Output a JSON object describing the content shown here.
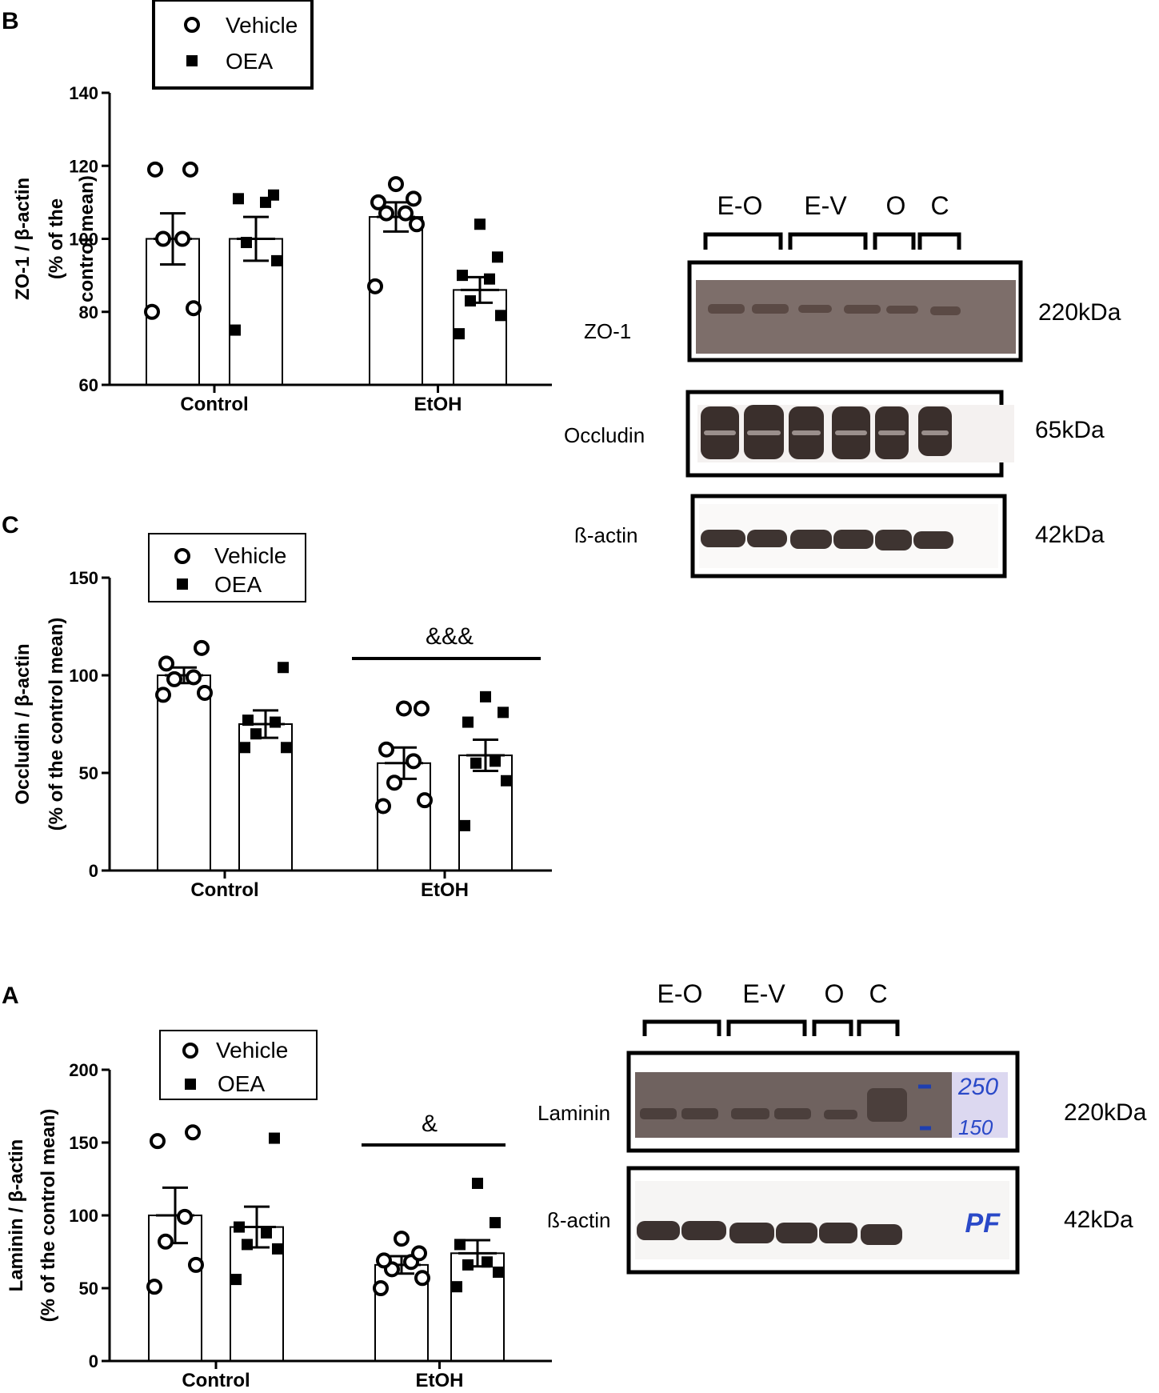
{
  "panels": {
    "B": "B",
    "C": "C",
    "A": "A"
  },
  "legend": {
    "vehicle": "Vehicle",
    "oea": "OEA"
  },
  "chart_data": [
    {
      "id": "B",
      "type": "bar",
      "ylabel_lines": [
        "ZO-1 / β-actin",
        "(% of the",
        "control mean)"
      ],
      "categories": [
        "Control",
        "EtOH"
      ],
      "ylim": [
        60,
        140
      ],
      "yticks": [
        60,
        80,
        100,
        120,
        140
      ],
      "series": [
        {
          "name": "Vehicle",
          "values": [
            100,
            106
          ],
          "sem": [
            7,
            4
          ],
          "points": [
            [
              80,
              81,
              100,
              100,
              119,
              119
            ],
            [
              87,
              104,
              107,
              107,
              110,
              111,
              115
            ]
          ]
        },
        {
          "name": "OEA",
          "values": [
            100,
            86
          ],
          "sem": [
            6,
            3.5
          ],
          "points": [
            [
              75,
              94,
              99,
              110,
              111,
              112
            ],
            [
              74,
              79,
              83,
              89,
              90,
              95,
              104
            ]
          ]
        }
      ],
      "annotation": ""
    },
    {
      "id": "C",
      "type": "bar",
      "ylabel_lines": [
        "Occludin / β-actin",
        "(% of the control mean)"
      ],
      "categories": [
        "Control",
        "EtOH"
      ],
      "ylim": [
        0,
        150
      ],
      "yticks": [
        0,
        50,
        100,
        150
      ],
      "series": [
        {
          "name": "Vehicle",
          "values": [
            100,
            55
          ],
          "sem": [
            4,
            8
          ],
          "points": [
            [
              90,
              91,
              98,
              99,
              106,
              114
            ],
            [
              33,
              36,
              45,
              56,
              62,
              83,
              83
            ]
          ]
        },
        {
          "name": "OEA",
          "values": [
            75,
            59
          ],
          "sem": [
            7,
            8
          ],
          "points": [
            [
              63,
              63,
              70,
              76,
              77,
              104
            ],
            [
              23,
              46,
              55,
              56,
              76,
              81,
              89
            ]
          ]
        }
      ],
      "annotation": "&&&"
    },
    {
      "id": "A",
      "type": "bar",
      "ylabel_lines": [
        "Laminin / β-actin",
        "(% of the control mean)"
      ],
      "categories": [
        "Control",
        "EtOH"
      ],
      "ylim": [
        0,
        200
      ],
      "yticks": [
        0,
        50,
        100,
        150,
        200
      ],
      "series": [
        {
          "name": "Vehicle",
          "values": [
            100,
            66
          ],
          "sem": [
            19,
            6
          ],
          "points": [
            [
              51,
              66,
              82,
              99,
              151,
              157
            ],
            [
              50,
              57,
              63,
              68,
              69,
              74,
              84
            ]
          ]
        },
        {
          "name": "OEA",
          "values": [
            92,
            74
          ],
          "sem": [
            14,
            9
          ],
          "points": [
            [
              56,
              77,
              80,
              88,
              92,
              153
            ],
            [
              51,
              61,
              66,
              68,
              80,
              95,
              122
            ]
          ]
        }
      ],
      "annotation": "&"
    }
  ],
  "blot_top": {
    "lane_labels": [
      "E-O",
      "E-V",
      "O",
      "C"
    ],
    "rows": [
      {
        "protein": "ZO-1",
        "size": "220kDa"
      },
      {
        "protein": "Occludin",
        "size": "65kDa"
      },
      {
        "protein": "ß-actin",
        "size": "42kDa"
      }
    ]
  },
  "blot_bottom": {
    "lane_labels": [
      "E-O",
      "E-V",
      "O",
      "C"
    ],
    "rows": [
      {
        "protein": "Laminin",
        "size": "220kDa"
      },
      {
        "protein": "ß-actin",
        "size": "42kDa"
      }
    ],
    "handwritten": [
      "250",
      "150",
      "PF"
    ]
  }
}
